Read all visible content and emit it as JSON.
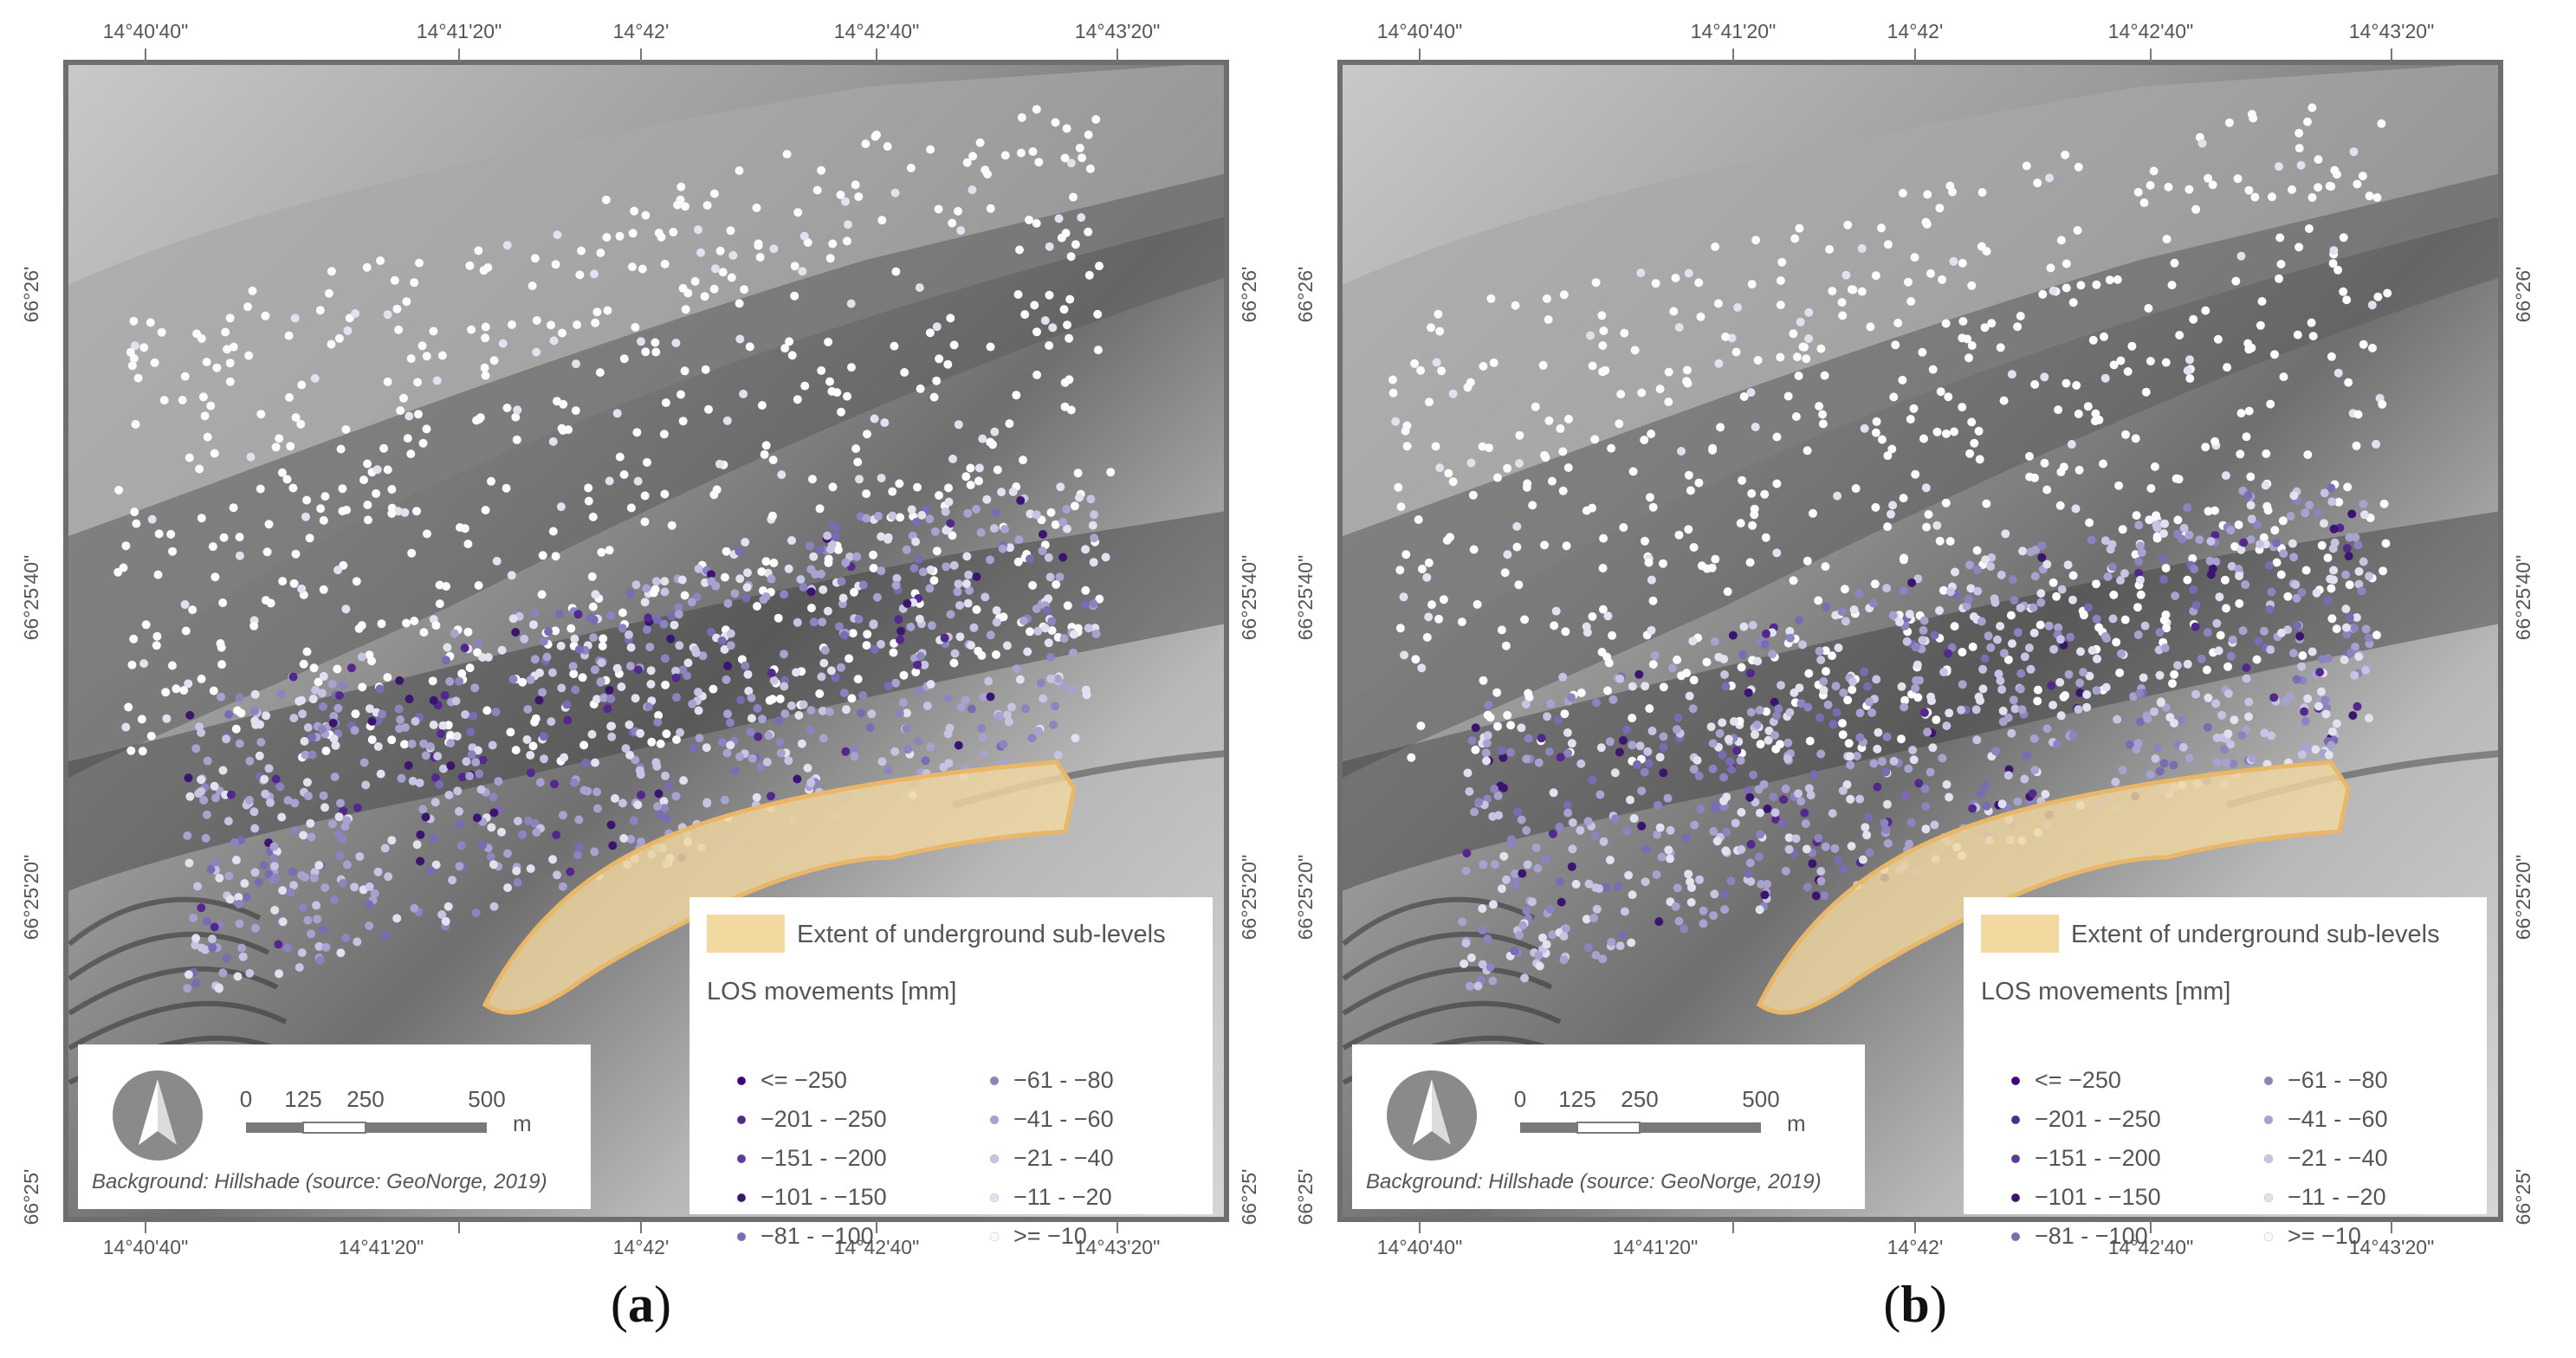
{
  "figure": {
    "panels": [
      {
        "id": "a",
        "label_prefix": "(",
        "label_letter": "a",
        "label_suffix": ")"
      },
      {
        "id": "b",
        "label_prefix": "(",
        "label_letter": "b",
        "label_suffix": ")"
      }
    ]
  },
  "axes": {
    "longitude_ticks": [
      "14°40'40\"",
      "14°41'20\"",
      "14°42'",
      "14°42'40\"",
      "14°43'20\""
    ],
    "latitude_ticks": [
      "66°26'",
      "66°25'40\"",
      "66°25'20\"",
      "66°25'"
    ]
  },
  "legend": {
    "extent_label": "Extent of underground sub-levels",
    "los_title": "LOS movements [mm]",
    "classes": [
      {
        "label": "<= −250",
        "color": "#3f007d"
      },
      {
        "label": "−201 - −250",
        "color": "#54278f"
      },
      {
        "label": "−151 - −200",
        "color": "#5e3a98"
      },
      {
        "label": "−101 - −150",
        "color": "#3b1470"
      },
      {
        "label": "−81 - −100",
        "color": "#7a6bb4"
      },
      {
        "label": "−61 - −80",
        "color": "#8c84c0"
      },
      {
        "label": "−41 - −60",
        "color": "#a7a2d0"
      },
      {
        "label": "−21 - −40",
        "color": "#c6c3e3"
      },
      {
        "label": "−11 - −20",
        "color": "#e2e1f0"
      },
      {
        "label": ">= −10",
        "color": "#fbfbfd"
      }
    ]
  },
  "scale_bar": {
    "ticks": [
      "0",
      "125",
      "250",
      "500"
    ],
    "unit": "m"
  },
  "background_note": "Background: Hillshade (source: GeoNorge, 2019)",
  "colors": {
    "extent_fill": "#f2d9a0",
    "extent_stroke": "#eab768",
    "north_arrow": "#8a8a8a",
    "frame": "#6e6e6e"
  }
}
